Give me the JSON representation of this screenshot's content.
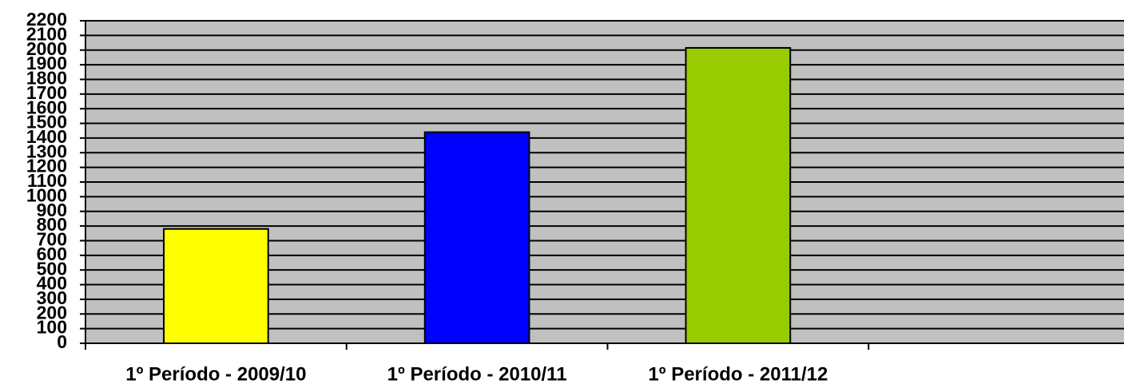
{
  "chart_data": {
    "type": "bar",
    "categories": [
      "1º Período - 2009/10",
      "1º Período - 2010/11",
      "1º Período - 2011/12",
      null
    ],
    "values": [
      780,
      1440,
      2015,
      null
    ],
    "colors": [
      "#ffff00",
      "#0000ff",
      "#99cc00",
      null
    ],
    "ylim": [
      0,
      2200
    ],
    "yticks": [
      0,
      100,
      200,
      300,
      400,
      500,
      600,
      700,
      800,
      900,
      1000,
      1100,
      1200,
      1300,
      1400,
      1500,
      1600,
      1700,
      1800,
      1900,
      2000,
      2100,
      2200
    ],
    "grid": true
  }
}
